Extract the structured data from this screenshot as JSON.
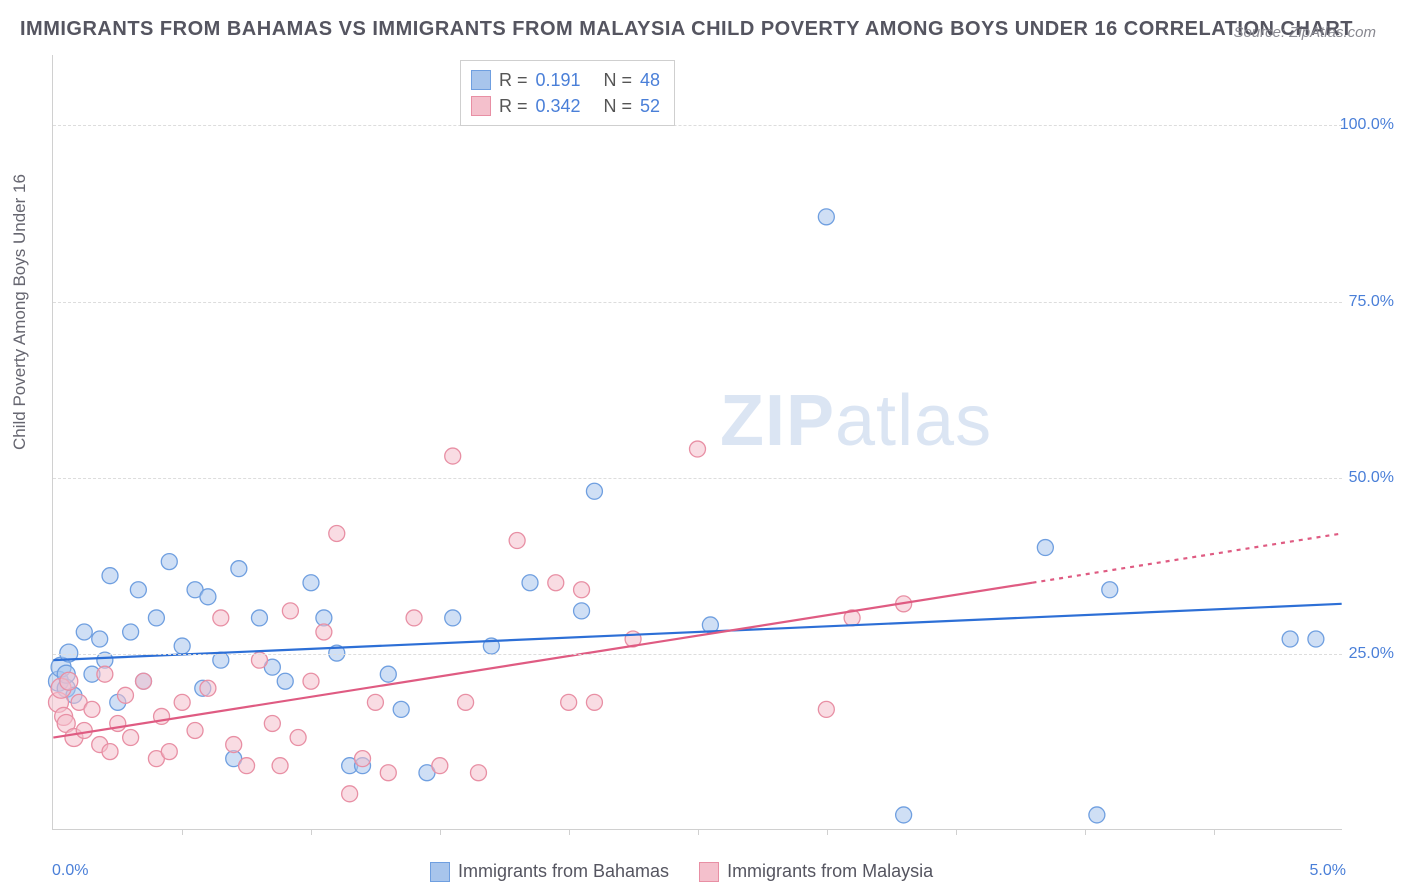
{
  "title": "IMMIGRANTS FROM BAHAMAS VS IMMIGRANTS FROM MALAYSIA CHILD POVERTY AMONG BOYS UNDER 16 CORRELATION CHART",
  "source": "Source: ZipAtlas.com",
  "ylabel": "Child Poverty Among Boys Under 16",
  "watermark_zip": "ZIP",
  "watermark_atlas": "atlas",
  "chart": {
    "type": "scatter",
    "xlim": [
      0,
      5.0
    ],
    "ylim": [
      0,
      110
    ],
    "yticks": [
      {
        "v": 25,
        "label": "25.0%"
      },
      {
        "v": 50,
        "label": "50.0%"
      },
      {
        "v": 75,
        "label": "75.0%"
      },
      {
        "v": 100,
        "label": "100.0%"
      }
    ],
    "xtick_labels": {
      "min": "0.0%",
      "max": "5.0%"
    },
    "xtick_marks": [
      0.5,
      1.0,
      1.5,
      2.0,
      2.5,
      3.0,
      3.5,
      4.0,
      4.5
    ],
    "background_color": "#ffffff",
    "grid_color": "#dddddd",
    "series": [
      {
        "name": "Immigrants from Bahamas",
        "color_fill": "#a8c5ec",
        "color_stroke": "#6f9fe0",
        "marker_radius": 8,
        "r_value": "0.191",
        "n_value": "48",
        "trend": {
          "x1": 0,
          "y1": 24,
          "x2": 5.0,
          "y2": 32,
          "color": "#2d6fd6",
          "width": 2.2,
          "dash_from_x": 5.0
        },
        "points": [
          [
            0.02,
            21,
            10
          ],
          [
            0.03,
            23,
            10
          ],
          [
            0.05,
            20,
            9
          ],
          [
            0.05,
            22,
            9
          ],
          [
            0.06,
            25,
            9
          ],
          [
            0.08,
            19,
            8
          ],
          [
            0.12,
            28,
            8
          ],
          [
            0.15,
            22,
            8
          ],
          [
            0.18,
            27,
            8
          ],
          [
            0.2,
            24,
            8
          ],
          [
            0.22,
            36,
            8
          ],
          [
            0.25,
            18,
            8
          ],
          [
            0.3,
            28,
            8
          ],
          [
            0.33,
            34,
            8
          ],
          [
            0.35,
            21,
            8
          ],
          [
            0.4,
            30,
            8
          ],
          [
            0.45,
            38,
            8
          ],
          [
            0.5,
            26,
            8
          ],
          [
            0.55,
            34,
            8
          ],
          [
            0.58,
            20,
            8
          ],
          [
            0.6,
            33,
            8
          ],
          [
            0.65,
            24,
            8
          ],
          [
            0.7,
            10,
            8
          ],
          [
            0.72,
            37,
            8
          ],
          [
            0.8,
            30,
            8
          ],
          [
            0.85,
            23,
            8
          ],
          [
            0.9,
            21,
            8
          ],
          [
            1.0,
            35,
            8
          ],
          [
            1.05,
            30,
            8
          ],
          [
            1.1,
            25,
            8
          ],
          [
            1.15,
            9,
            8
          ],
          [
            1.2,
            9,
            8
          ],
          [
            1.3,
            22,
            8
          ],
          [
            1.35,
            17,
            8
          ],
          [
            1.45,
            8,
            8
          ],
          [
            1.55,
            30,
            8
          ],
          [
            1.7,
            26,
            8
          ],
          [
            1.85,
            35,
            8
          ],
          [
            2.05,
            31,
            8
          ],
          [
            2.1,
            48,
            8
          ],
          [
            2.55,
            29,
            8
          ],
          [
            3.0,
            87,
            8
          ],
          [
            3.3,
            2,
            8
          ],
          [
            3.85,
            40,
            8
          ],
          [
            4.05,
            2,
            8
          ],
          [
            4.1,
            34,
            8
          ],
          [
            4.8,
            27,
            8
          ],
          [
            4.9,
            27,
            8
          ]
        ]
      },
      {
        "name": "Immigrants from Malaysia",
        "color_fill": "#f4c0cc",
        "color_stroke": "#e88fa4",
        "marker_radius": 8,
        "r_value": "0.342",
        "n_value": "52",
        "trend": {
          "x1": 0,
          "y1": 13,
          "x2": 3.8,
          "y2": 35,
          "color": "#df5b82",
          "width": 2.2,
          "dash_from_x": 3.8,
          "dash_to_x": 5.0,
          "dash_to_y": 42
        },
        "points": [
          [
            0.02,
            18,
            10
          ],
          [
            0.03,
            20,
            10
          ],
          [
            0.04,
            16,
            9
          ],
          [
            0.05,
            15,
            9
          ],
          [
            0.06,
            21,
            9
          ],
          [
            0.08,
            13,
            9
          ],
          [
            0.1,
            18,
            8
          ],
          [
            0.12,
            14,
            8
          ],
          [
            0.15,
            17,
            8
          ],
          [
            0.18,
            12,
            8
          ],
          [
            0.2,
            22,
            8
          ],
          [
            0.22,
            11,
            8
          ],
          [
            0.25,
            15,
            8
          ],
          [
            0.28,
            19,
            8
          ],
          [
            0.3,
            13,
            8
          ],
          [
            0.35,
            21,
            8
          ],
          [
            0.4,
            10,
            8
          ],
          [
            0.42,
            16,
            8
          ],
          [
            0.45,
            11,
            8
          ],
          [
            0.5,
            18,
            8
          ],
          [
            0.55,
            14,
            8
          ],
          [
            0.6,
            20,
            8
          ],
          [
            0.65,
            30,
            8
          ],
          [
            0.7,
            12,
            8
          ],
          [
            0.75,
            9,
            8
          ],
          [
            0.8,
            24,
            8
          ],
          [
            0.85,
            15,
            8
          ],
          [
            0.88,
            9,
            8
          ],
          [
            0.92,
            31,
            8
          ],
          [
            0.95,
            13,
            8
          ],
          [
            1.0,
            21,
            8
          ],
          [
            1.05,
            28,
            8
          ],
          [
            1.1,
            42,
            8
          ],
          [
            1.15,
            5,
            8
          ],
          [
            1.2,
            10,
            8
          ],
          [
            1.25,
            18,
            8
          ],
          [
            1.3,
            8,
            8
          ],
          [
            1.4,
            30,
            8
          ],
          [
            1.5,
            9,
            8
          ],
          [
            1.55,
            53,
            8
          ],
          [
            1.6,
            18,
            8
          ],
          [
            1.65,
            8,
            8
          ],
          [
            1.8,
            41,
            8
          ],
          [
            1.95,
            35,
            8
          ],
          [
            2.0,
            18,
            8
          ],
          [
            2.05,
            34,
            8
          ],
          [
            2.1,
            18,
            8
          ],
          [
            2.25,
            27,
            8
          ],
          [
            2.5,
            54,
            8
          ],
          [
            3.0,
            17,
            8
          ],
          [
            3.1,
            30,
            8
          ],
          [
            3.3,
            32,
            8
          ]
        ]
      }
    ]
  },
  "legend_top_labels": {
    "r": "R  =",
    "n": "N  ="
  },
  "legend_bottom": [
    {
      "swatch_fill": "#a8c5ec",
      "swatch_stroke": "#6f9fe0",
      "label": "Immigrants from Bahamas"
    },
    {
      "swatch_fill": "#f4c0cc",
      "swatch_stroke": "#e88fa4",
      "label": "Immigrants from Malaysia"
    }
  ]
}
